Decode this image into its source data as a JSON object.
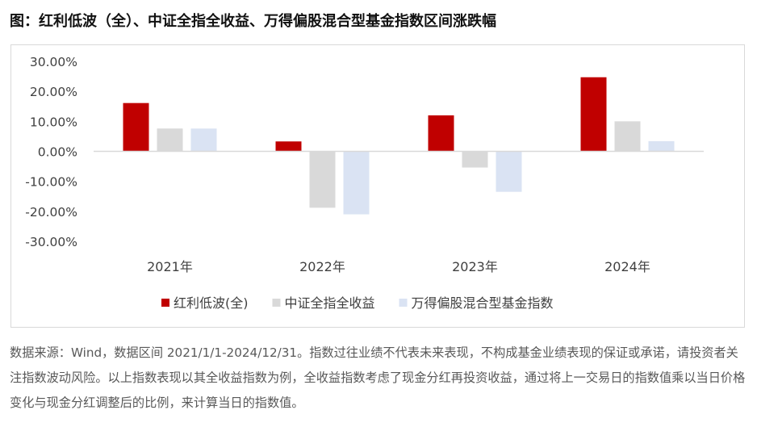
{
  "page": {
    "title": "图：红利低波（全）、中证全指全收益、万得偏股混合型基金指数区间涨跌幅",
    "note": "数据来源：Wind，数据区间 2021/1/1-2024/12/31。指数过往业绩不代表未来表现，不构成基金业绩表现的保证或承诺，请投资者关注指数波动风险。以上指数表现以其全收益指数为例，全收益指数考虑了现金分红再投资收益，通过将上一交易日的指数值乘以当日价格变化与现金分红调整后的比例，来计算当日的指数值。"
  },
  "chart_data": {
    "type": "bar",
    "title": "",
    "xlabel": "",
    "ylabel": "",
    "categories": [
      "2021年",
      "2022年",
      "2023年",
      "2024年"
    ],
    "series": [
      {
        "name": "红利低波(全)",
        "color": "#c00000",
        "values": [
          16.1,
          3.3,
          12.0,
          24.7
        ]
      },
      {
        "name": "中证全指全收益",
        "color": "#d9d9d9",
        "values": [
          7.6,
          -18.8,
          -5.4,
          10.0
        ]
      },
      {
        "name": "万得偏股混合型基金指数",
        "color": "#dae3f3",
        "values": [
          7.6,
          -21.0,
          -13.5,
          3.4
        ]
      }
    ],
    "ylim": [
      -30,
      30
    ],
    "yticks": [
      "30.00%",
      "20.00%",
      "10.00%",
      "0.00%",
      "-10.00%",
      "-20.00%",
      "-30.00%"
    ],
    "ytick_values": [
      30,
      20,
      10,
      0,
      -10,
      -20,
      -30
    ],
    "grid": false,
    "legend_position": "bottom"
  }
}
